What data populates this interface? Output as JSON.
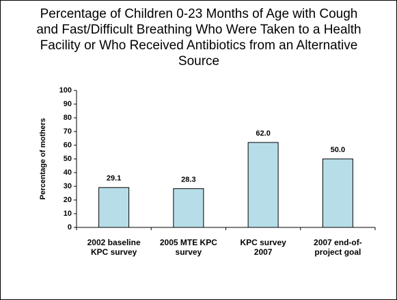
{
  "chart_data": {
    "type": "bar",
    "title": "Percentage of Children 0-23 Months of Age with Cough and Fast/Difficult Breathing Who Were Taken to a Health Facility or Who Received Antibiotics from an Alternative Source",
    "y_label": "Percentage of mothers",
    "categories": [
      "2002 baseline KPC survey",
      "2005 MTE KPC survey",
      "KPC survey 2007",
      "2007 end-of-project goal"
    ],
    "values": [
      29.1,
      28.3,
      62.0,
      50.0
    ],
    "value_labels": [
      "29.1",
      "28.3",
      "62.0",
      "50.0"
    ],
    "color": "#b7dee8",
    "ylim": [
      0,
      100
    ],
    "yticks": [
      0,
      10,
      20,
      30,
      40,
      50,
      60,
      70,
      80,
      90,
      100
    ]
  }
}
